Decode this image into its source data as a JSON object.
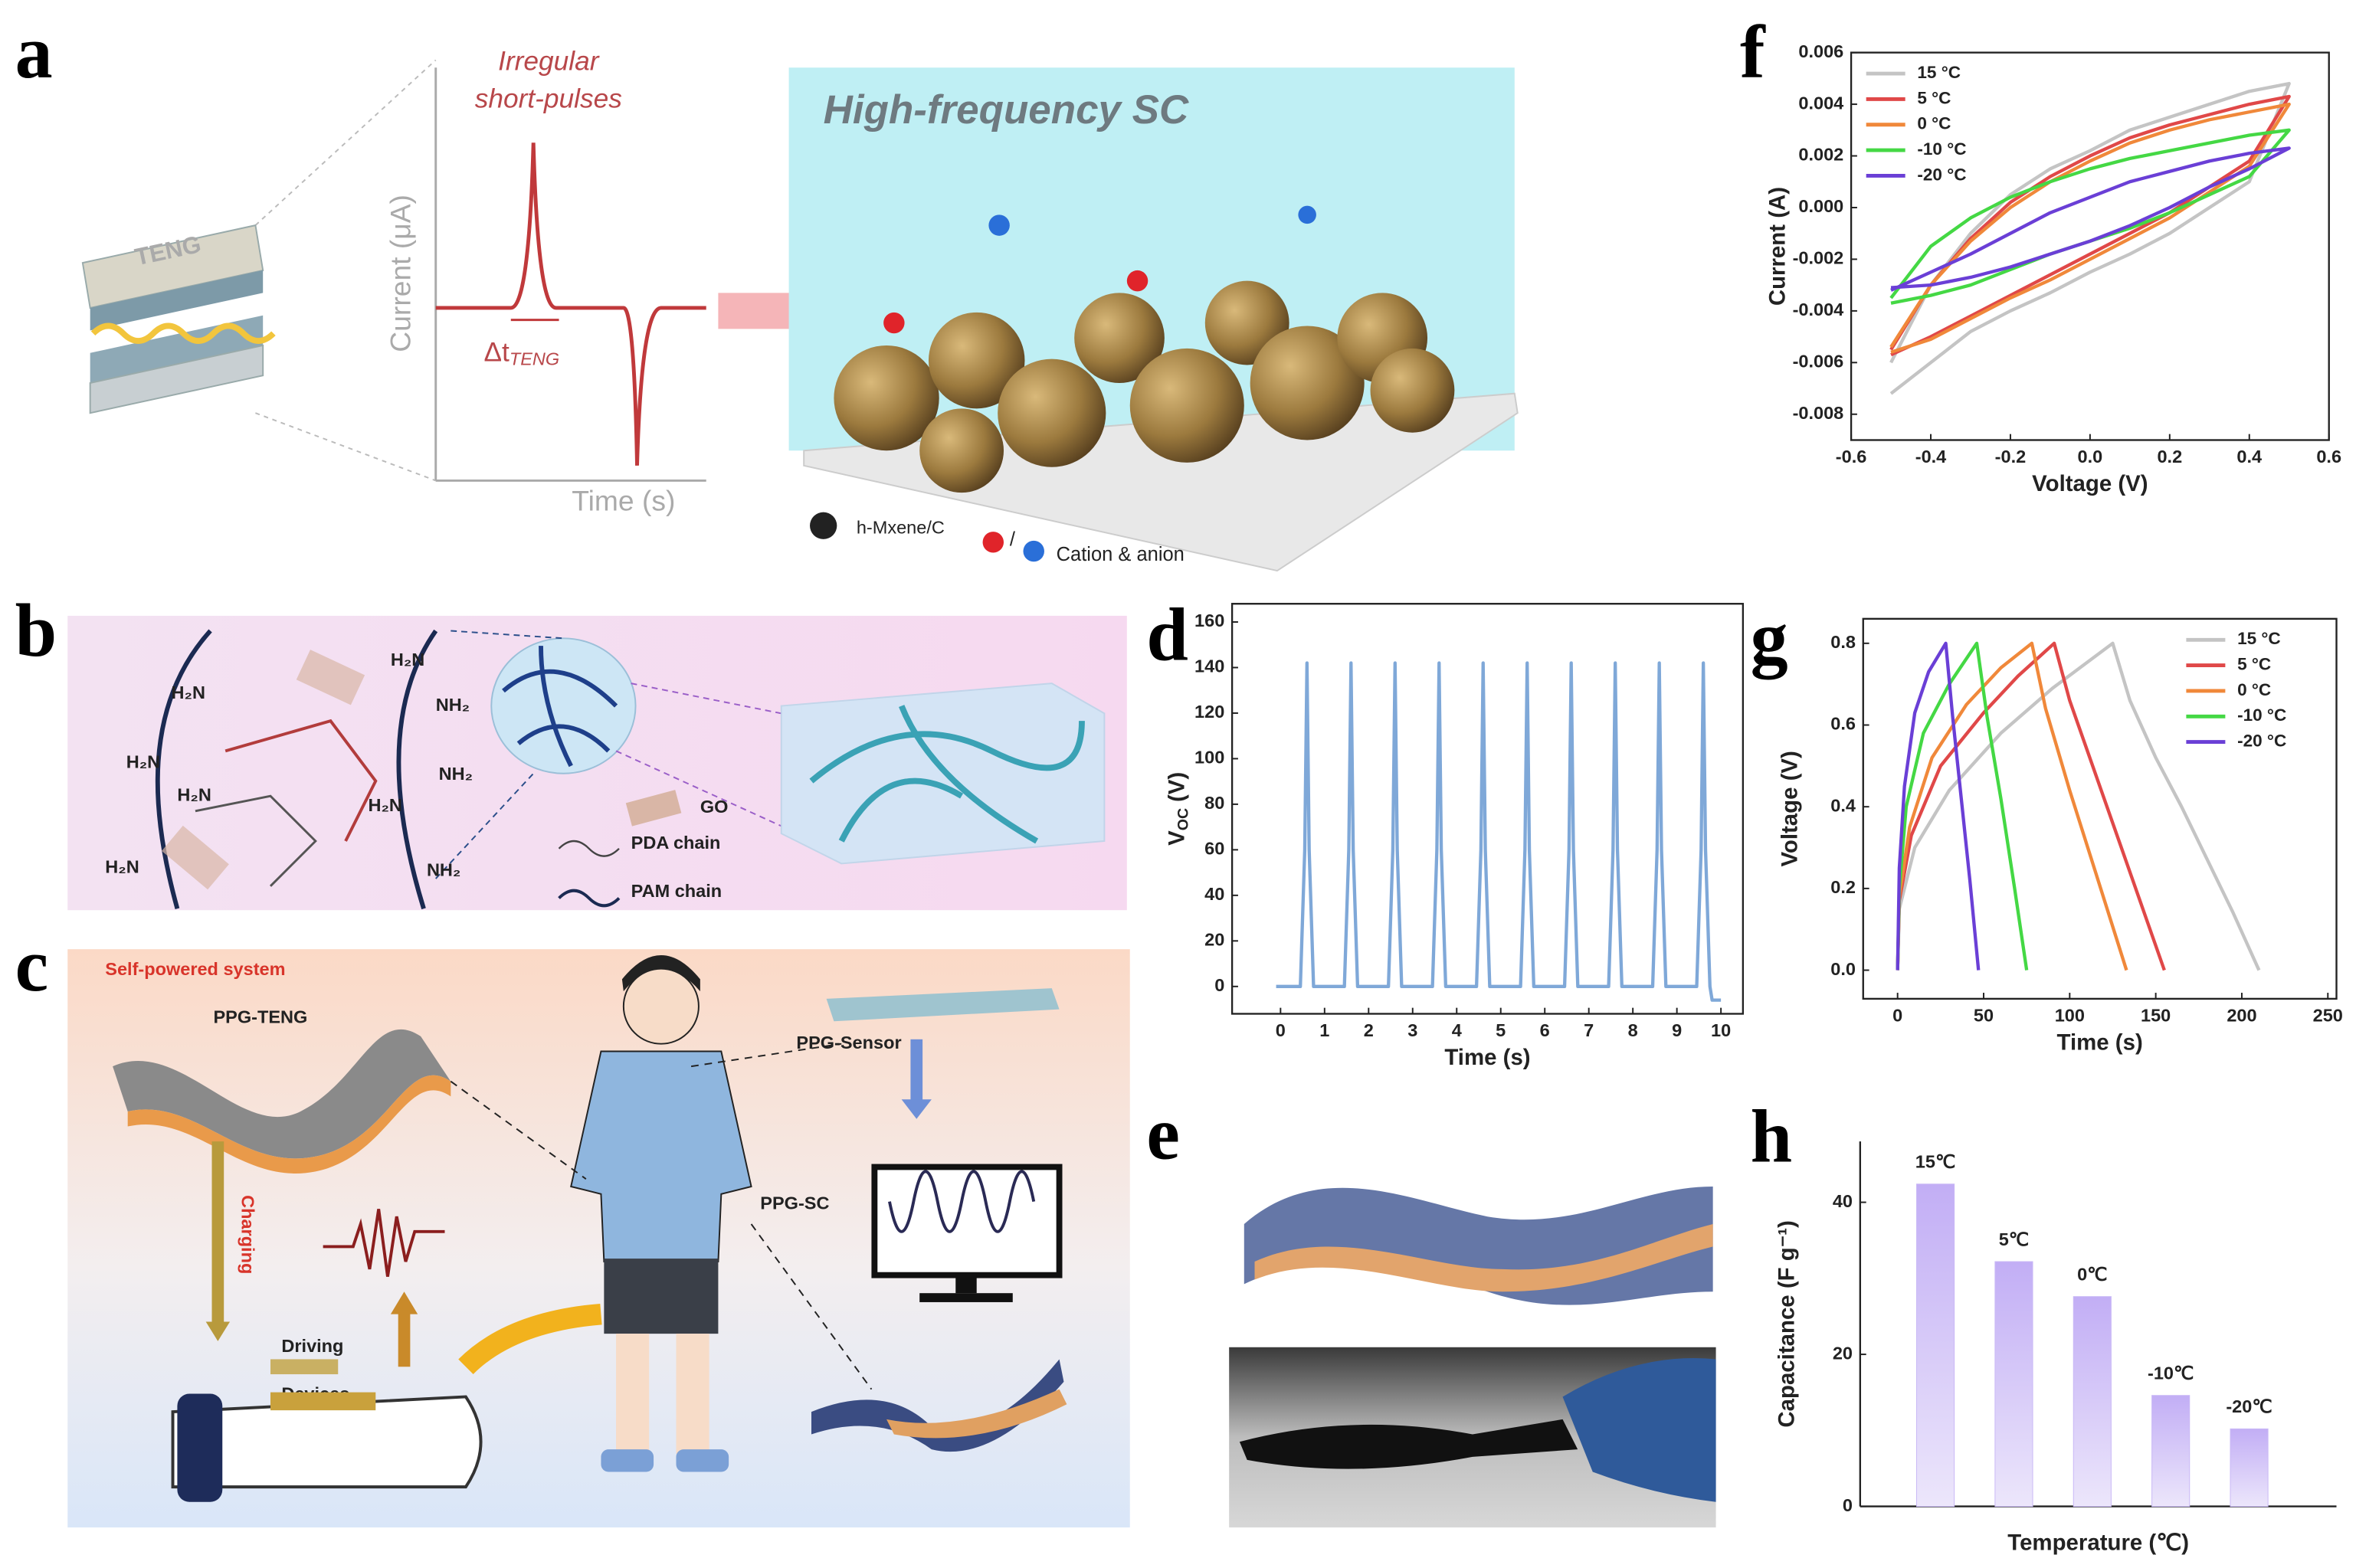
{
  "panel_labels": [
    "a",
    "b",
    "c",
    "d",
    "e",
    "f",
    "g",
    "h"
  ],
  "panel_a": {
    "pulse_title": [
      "Irregular",
      "short-pulses"
    ],
    "ylabel": "Current (μA)",
    "xlabel": "Time (s)",
    "delta": "Δt",
    "delta_sub": "TENG",
    "device": "TENG",
    "sc_title": "High-frequency SC",
    "legend_material": "h-Mxene/C",
    "slash": "/",
    "legend_ions": "Cation & anion"
  },
  "panel_b": {
    "labels": [
      "GO",
      "PDA chain",
      "PAM chain"
    ],
    "groups": [
      "H₂N",
      "H₂N",
      "H₂N",
      "H₂N",
      "H₂N",
      "NH₂",
      "NH₂",
      "NH₂",
      "H₂N"
    ]
  },
  "panel_c": {
    "title": "Self-powered system",
    "teng": "PPG-TENG",
    "charging": "Charging",
    "driving": "Driving",
    "devices": "Devices",
    "sensor": "PPG-Sensor",
    "sc": "PPG-SC"
  },
  "chart_data": [
    {
      "type": "line",
      "xlabel": "Voltage (V)",
      "ylabel": "Current (A)",
      "xlim": [
        -0.6,
        0.6
      ],
      "xticks": [
        -0.6,
        -0.4,
        -0.2,
        {
          "value": 0,
          "label": "0.0"
        },
        0.2,
        0.4,
        0.6
      ],
      "ylim": [
        -0.009,
        0.006
      ],
      "yticks": [
        0.006,
        0.004,
        0.002,
        {
          "value": 0,
          "label": "0.000"
        },
        -0.002,
        -0.004,
        -0.006,
        -0.008
      ],
      "legend": "upper left",
      "x": [
        -0.5,
        -0.4,
        -0.3,
        -0.2,
        -0.1,
        0,
        0.1,
        0.2,
        0.3,
        0.4,
        0.5,
        0.4,
        0.3,
        0.2,
        0.1,
        0,
        -0.1,
        -0.2,
        -0.3,
        -0.4,
        -0.5
      ],
      "series": [
        {
          "name": "15 °C",
          "color": "#c4c4c4",
          "values": [
            -0.006,
            -0.003,
            -0.001,
            0.0005,
            0.0015,
            0.0022,
            0.003,
            0.0035,
            0.004,
            0.0045,
            0.0048,
            0.001,
            0,
            -0.001,
            -0.0018,
            -0.0025,
            -0.0033,
            -0.004,
            -0.0048,
            -0.006,
            -0.0072
          ]
        },
        {
          "name": "5 °C",
          "color": "#e04848",
          "values": [
            -0.0055,
            -0.003,
            -0.0012,
            0.0002,
            0.0012,
            0.002,
            0.0027,
            0.0032,
            0.0036,
            0.004,
            0.0043,
            0.0018,
            0.0008,
            -0.0002,
            -0.001,
            -0.0018,
            -0.0026,
            -0.0034,
            -0.0042,
            -0.005,
            -0.0057
          ]
        },
        {
          "name": "0 °C",
          "color": "#f0883a",
          "values": [
            -0.0054,
            -0.003,
            -0.0013,
            0,
            0.001,
            0.0018,
            0.0025,
            0.003,
            0.0034,
            0.0037,
            0.004,
            0.0016,
            0.0006,
            -0.0004,
            -0.0012,
            -0.002,
            -0.0028,
            -0.0035,
            -0.0043,
            -0.0051,
            -0.0056
          ]
        },
        {
          "name": "-10 °C",
          "color": "#44d844",
          "values": [
            -0.0035,
            -0.0015,
            -0.0004,
            0.0004,
            0.001,
            0.0015,
            0.0019,
            0.0022,
            0.0025,
            0.0028,
            0.003,
            0.0012,
            0.0005,
            -0.0002,
            -0.0008,
            -0.0013,
            -0.0018,
            -0.0024,
            -0.003,
            -0.0034,
            -0.0037
          ]
        },
        {
          "name": "-20 °C",
          "color": "#6a3fd6",
          "values": [
            -0.0032,
            -0.0025,
            -0.0018,
            -0.001,
            -0.0002,
            0.0004,
            0.001,
            0.0014,
            0.0018,
            0.0021,
            0.0023,
            0.0015,
            0.0008,
            0,
            -0.0007,
            -0.0013,
            -0.0018,
            -0.0023,
            -0.0027,
            -0.003,
            -0.0031
          ]
        }
      ]
    },
    {
      "type": "line",
      "xlabel": "Time (s)",
      "ylabel_parts": [
        "V",
        "OC",
        "(V)"
      ],
      "xlim": [
        -1.1,
        10.5
      ],
      "xticks": [
        0,
        1,
        2,
        3,
        4,
        5,
        6,
        7,
        8,
        9,
        10
      ],
      "ylim": [
        -12,
        168
      ],
      "yticks": [
        0,
        20,
        40,
        60,
        80,
        100,
        120,
        140,
        160
      ],
      "color": "#7fa8d8",
      "x": [
        -0.1,
        0.45,
        0.55,
        0.6,
        0.65,
        0.75,
        1.45,
        1.55,
        1.6,
        1.65,
        1.75,
        2.45,
        2.55,
        2.6,
        2.65,
        2.75,
        3.45,
        3.55,
        3.6,
        3.65,
        3.75,
        4.45,
        4.55,
        4.6,
        4.65,
        4.75,
        5.45,
        5.55,
        5.6,
        5.65,
        5.75,
        6.45,
        6.55,
        6.6,
        6.65,
        6.75,
        7.45,
        7.55,
        7.6,
        7.65,
        7.75,
        8.45,
        8.55,
        8.6,
        8.65,
        8.75,
        9.45,
        9.55,
        9.6,
        9.65,
        9.75,
        9.8,
        10.0
      ],
      "values": [
        0,
        0,
        60,
        142,
        60,
        0,
        0,
        60,
        142,
        60,
        0,
        0,
        60,
        142,
        60,
        0,
        0,
        60,
        142,
        60,
        0,
        0,
        60,
        142,
        60,
        0,
        0,
        60,
        142,
        60,
        0,
        0,
        60,
        142,
        60,
        0,
        0,
        60,
        142,
        60,
        0,
        0,
        60,
        142,
        60,
        0,
        0,
        60,
        142,
        60,
        0,
        -6,
        -6
      ]
    },
    {
      "type": "line",
      "xlabel": "Time (s)",
      "ylabel": "Voltage (V)",
      "xlim": [
        -20,
        255
      ],
      "xticks": [
        0,
        50,
        100,
        150,
        200,
        250
      ],
      "ylim": [
        -0.07,
        0.86
      ],
      "yticks": [
        {
          "value": 0,
          "label": "0.0"
        },
        0.2,
        0.4,
        0.6,
        0.8
      ],
      "legend": "upper right",
      "series": [
        {
          "name": "15 °C",
          "color": "#c4c4c4",
          "x": [
            0,
            1,
            10,
            30,
            60,
            90,
            125,
            135,
            150,
            165,
            180,
            195,
            210
          ],
          "values": [
            0,
            0.15,
            0.3,
            0.44,
            0.58,
            0.69,
            0.8,
            0.66,
            0.52,
            0.4,
            0.27,
            0.14,
            0
          ]
        },
        {
          "name": "5 °C",
          "color": "#e04848",
          "x": [
            0,
            1,
            8,
            25,
            50,
            70,
            91,
            100,
            115,
            130,
            145,
            155
          ],
          "values": [
            0,
            0.17,
            0.33,
            0.5,
            0.63,
            0.72,
            0.8,
            0.66,
            0.48,
            0.3,
            0.12,
            0
          ]
        },
        {
          "name": "0 °C",
          "color": "#f0883a",
          "x": [
            0,
            1,
            7,
            20,
            40,
            60,
            78,
            86,
            100,
            115,
            133
          ],
          "values": [
            0,
            0.18,
            0.35,
            0.52,
            0.65,
            0.74,
            0.8,
            0.64,
            0.44,
            0.24,
            0
          ]
        },
        {
          "name": "-10 °C",
          "color": "#44d844",
          "x": [
            0,
            1,
            5,
            15,
            30,
            46,
            52,
            60,
            68,
            75
          ],
          "values": [
            0,
            0.2,
            0.4,
            0.58,
            0.7,
            0.8,
            0.62,
            0.42,
            0.2,
            0
          ]
        },
        {
          "name": "-20 °C",
          "color": "#6a3fd6",
          "x": [
            0,
            1,
            4,
            10,
            18,
            28,
            32,
            37,
            42,
            47
          ],
          "values": [
            0,
            0.25,
            0.45,
            0.63,
            0.73,
            0.8,
            0.62,
            0.42,
            0.22,
            0
          ]
        }
      ]
    },
    {
      "type": "bar",
      "xlabel": "Temperature (℃)",
      "ylabel": "Capacitance (F g⁻¹)",
      "categories": [
        "15℃",
        "5℃",
        "0℃",
        "-10℃",
        "-20℃"
      ],
      "values": [
        42.4,
        32.2,
        27.6,
        14.6,
        10.2
      ],
      "color": "#c9b8f6",
      "ylim": [
        0,
        48
      ],
      "yticks": [
        0,
        20,
        40
      ]
    }
  ]
}
